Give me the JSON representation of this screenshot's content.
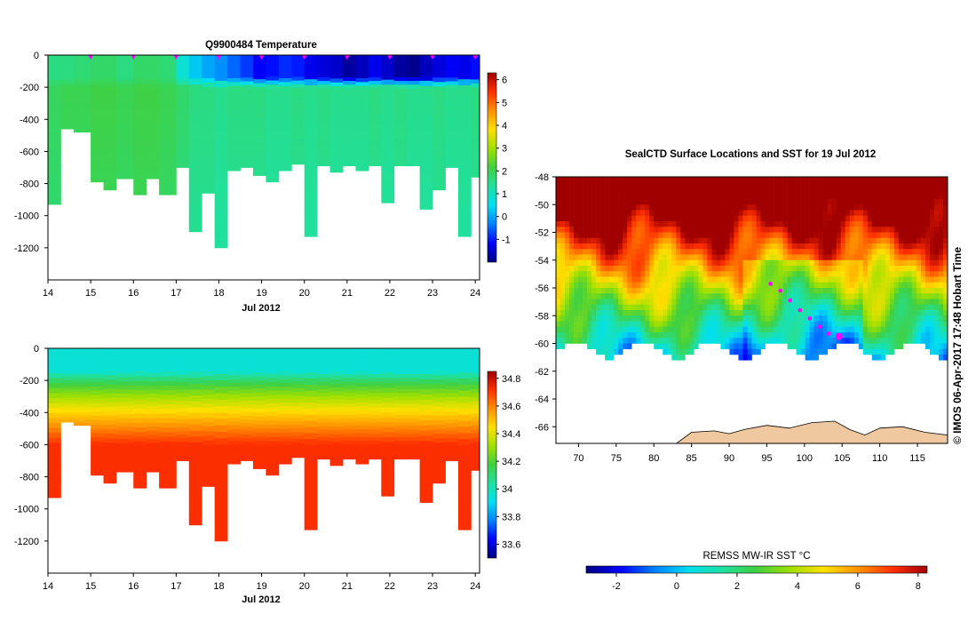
{
  "chart_data": [
    {
      "type": "heatmap",
      "title": "Q9900484  Temperature",
      "xlabel": "Jul 2012",
      "ylabel": "",
      "xlim": [
        14,
        24.1
      ],
      "ylim": [
        -1400,
        0
      ],
      "xticks": [
        14,
        15,
        16,
        17,
        18,
        19,
        20,
        21,
        22,
        23,
        24
      ],
      "yticks": [
        0,
        -200,
        -400,
        -600,
        -800,
        -1000,
        -1200
      ],
      "profile_markers_x": [
        15,
        16,
        17,
        18,
        19,
        20,
        21,
        22,
        23,
        24
      ],
      "profiles": {
        "start_days": [
          14.0,
          14.3,
          14.6,
          15.0,
          15.3,
          15.6,
          16.0,
          16.3,
          16.6,
          17.0,
          17.3,
          17.6,
          17.9,
          18.2,
          18.5,
          18.8,
          19.1,
          19.4,
          19.7,
          20.0,
          20.3,
          20.6,
          20.9,
          21.2,
          21.5,
          21.8,
          22.1,
          22.4,
          22.7,
          23.0,
          23.3,
          23.6,
          23.9
        ],
        "max_depth_m": [
          -930,
          -460,
          -480,
          -790,
          -840,
          -770,
          -870,
          -770,
          -870,
          -700,
          -1100,
          -860,
          -1200,
          -720,
          -700,
          -750,
          -790,
          -720,
          -680,
          -1130,
          -690,
          -730,
          -690,
          -720,
          -690,
          -920,
          -690,
          -690,
          -960,
          -840,
          -700,
          -1130,
          -760
        ],
        "surface_temp_c": [
          1.6,
          1.6,
          1.7,
          1.8,
          1.8,
          1.6,
          1.8,
          1.8,
          1.7,
          0.8,
          0.3,
          0.0,
          -0.2,
          -0.5,
          -0.8,
          -1.2,
          -1.1,
          -0.9,
          -1.0,
          -1.3,
          -1.4,
          -1.5,
          -1.8,
          -1.6,
          -1.3,
          -1.5,
          -1.8,
          -1.9,
          -1.6,
          -1.4,
          -1.2,
          -1.3,
          -1.1
        ],
        "deep_temp_c": [
          1.9,
          2.0,
          2.0,
          2.1,
          2.1,
          2.0,
          2.1,
          2.1,
          2.0,
          1.8,
          1.6,
          1.6,
          1.5,
          1.6,
          1.6,
          1.6,
          1.5,
          1.5,
          1.6,
          1.5,
          1.6,
          1.5,
          1.5,
          1.5,
          1.6,
          1.5,
          1.6,
          1.5,
          1.5,
          1.6,
          1.5,
          1.5,
          1.6
        ]
      },
      "colorbar": {
        "min": -2,
        "max": 6.3,
        "ticks": [
          -1,
          0,
          1,
          2,
          3,
          4,
          5,
          6
        ],
        "colormap": "jet"
      }
    },
    {
      "type": "heatmap",
      "title": "",
      "xlabel": "Jul 2012",
      "ylabel": "",
      "xlim": [
        14,
        24.1
      ],
      "ylim": [
        -1400,
        0
      ],
      "xticks": [
        14,
        15,
        16,
        17,
        18,
        19,
        20,
        21,
        22,
        23,
        24
      ],
      "yticks": [
        0,
        -200,
        -400,
        -600,
        -800,
        -1000,
        -1200
      ],
      "quantity": "salinity",
      "surface_salinity": 33.95,
      "deep_salinity": 34.72,
      "colorbar": {
        "min": 33.5,
        "max": 34.85,
        "ticks": [
          33.6,
          33.8,
          34,
          34.2,
          34.4,
          34.6,
          34.8
        ],
        "colormap": "jet"
      }
    },
    {
      "type": "heatmap",
      "title": "SealCTD Surface Locations and SST for 19 Jul 2012",
      "xlabel": "",
      "ylabel": "",
      "xlim": [
        67,
        119
      ],
      "ylim": [
        -67.2,
        -48
      ],
      "xticks": [
        70,
        75,
        80,
        85,
        90,
        95,
        100,
        105,
        110,
        115
      ],
      "yticks": [
        -48,
        -50,
        -52,
        -54,
        -56,
        -58,
        -60,
        -62,
        -64,
        -66
      ],
      "track_points": [
        {
          "lon": 95.5,
          "lat": -55.7
        },
        {
          "lon": 96.8,
          "lat": -56.2
        },
        {
          "lon": 98.1,
          "lat": -56.9
        },
        {
          "lon": 99.4,
          "lat": -57.6
        },
        {
          "lon": 100.7,
          "lat": -58.2
        },
        {
          "lon": 102.0,
          "lat": -58.8
        },
        {
          "lon": 103.2,
          "lat": -59.3
        }
      ],
      "current_location": {
        "lon": 104.6,
        "lat": -59.5
      },
      "colorbar": {
        "label": "REMSS MW-IR SST °C",
        "min": -3,
        "max": 8.3,
        "ticks": [
          -2,
          0,
          2,
          4,
          6,
          8
        ],
        "colormap": "jet"
      },
      "credit": "© IMOS 06-Apr-2017 17:48 Hobart Time"
    }
  ],
  "colors": {
    "land": "#f0c8a0",
    "track": "#ff00ff",
    "white": "#ffffff"
  }
}
